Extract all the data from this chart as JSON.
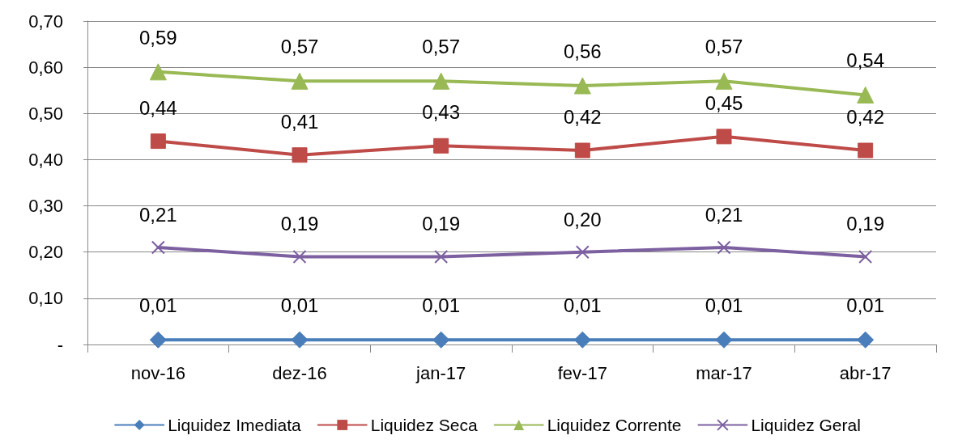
{
  "chart_data": {
    "type": "line",
    "categories": [
      "nov-16",
      "dez-16",
      "jan-17",
      "fev-17",
      "mar-17",
      "abr-17"
    ],
    "series": [
      {
        "name": "Liquidez Imediata",
        "color": "#4a7ebb",
        "marker": "diamond",
        "values": [
          0.01,
          0.01,
          0.01,
          0.01,
          0.01,
          0.01
        ],
        "value_labels": [
          "0,01",
          "0,01",
          "0,01",
          "0,01",
          "0,01",
          "0,01"
        ]
      },
      {
        "name": "Liquidez Seca",
        "color": "#be4b48",
        "marker": "square",
        "values": [
          0.44,
          0.41,
          0.43,
          0.42,
          0.45,
          0.42
        ],
        "value_labels": [
          "0,44",
          "0,41",
          "0,43",
          "0,42",
          "0,45",
          "0,42"
        ]
      },
      {
        "name": "Liquidez Corrente",
        "color": "#98b954",
        "marker": "triangle",
        "values": [
          0.59,
          0.57,
          0.57,
          0.56,
          0.57,
          0.54
        ],
        "value_labels": [
          "0,59",
          "0,57",
          "0,57",
          "0,56",
          "0,57",
          "0,54"
        ]
      },
      {
        "name": "Liquidez Geral",
        "color": "#7d60a0",
        "marker": "cross",
        "values": [
          0.21,
          0.19,
          0.19,
          0.2,
          0.21,
          0.19
        ],
        "value_labels": [
          "0,21",
          "0,19",
          "0,19",
          "0,20",
          "0,21",
          "0,19"
        ]
      }
    ],
    "ylim": [
      0,
      0.7
    ],
    "yticks": [
      {
        "value": 0,
        "label": "-"
      },
      {
        "value": 0.1,
        "label": "0,10"
      },
      {
        "value": 0.2,
        "label": "0,20"
      },
      {
        "value": 0.3,
        "label": "0,30"
      },
      {
        "value": 0.4,
        "label": "0,40"
      },
      {
        "value": 0.5,
        "label": "0,50"
      },
      {
        "value": 0.6,
        "label": "0,60"
      },
      {
        "value": 0.7,
        "label": "0,70"
      }
    ],
    "grid": "y",
    "legend": "bottom",
    "line_style": "solid"
  }
}
